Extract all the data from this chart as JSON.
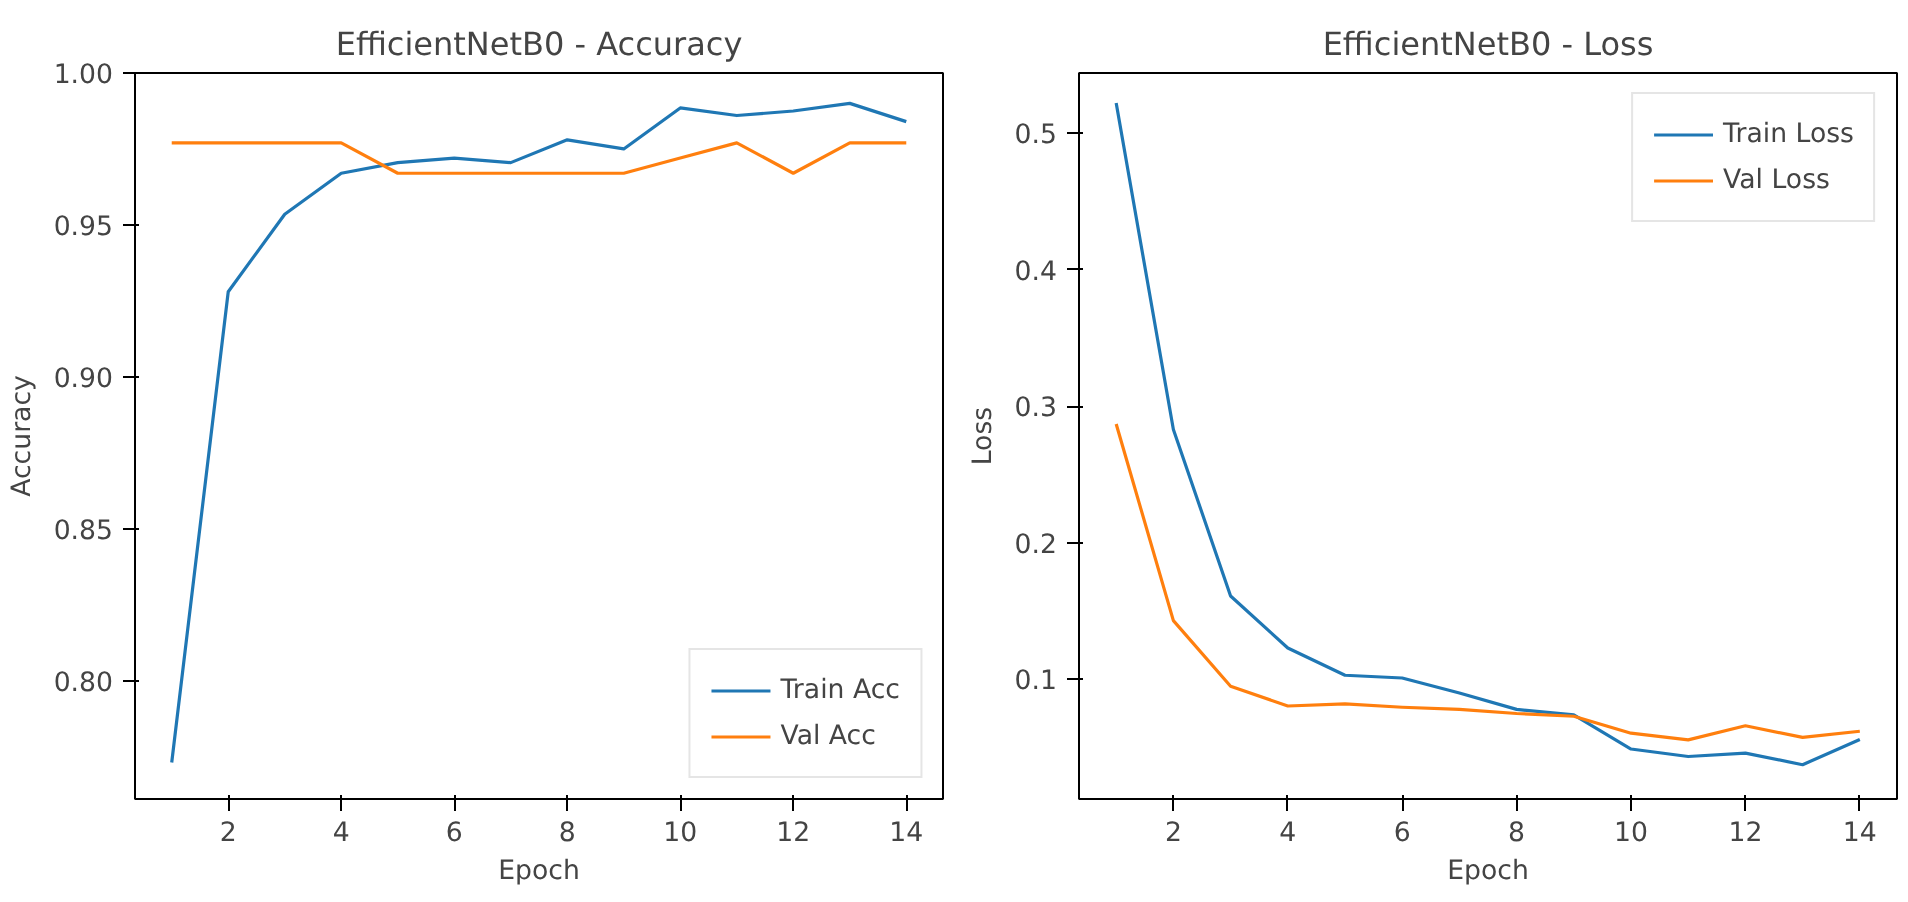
{
  "chart_data": [
    {
      "type": "line",
      "title": "EfficientNetB0 - Accuracy",
      "xlabel": "Epoch",
      "ylabel": "Accuracy",
      "x": [
        1,
        2,
        3,
        4,
        5,
        6,
        7,
        8,
        9,
        10,
        11,
        12,
        13,
        14
      ],
      "xlim": [
        0.35,
        14.65
      ],
      "xticks": [
        2,
        4,
        6,
        8,
        10,
        12,
        14
      ],
      "ylim": [
        0.761,
        1.0
      ],
      "yticks": [
        {
          "value": 0.8,
          "label": "0.80"
        },
        {
          "value": 0.85,
          "label": "0.85"
        },
        {
          "value": 0.9,
          "label": "0.90"
        },
        {
          "value": 0.95,
          "label": "0.95"
        },
        {
          "value": 1.0,
          "label": "1.00"
        }
      ],
      "grid": false,
      "legend": "bottom right",
      "marker": "none",
      "line_style": "solid",
      "series": [
        {
          "name": "Train Acc",
          "color": "#1f77b4",
          "values": [
            0.773,
            0.928,
            0.9535,
            0.967,
            0.9705,
            0.972,
            0.9705,
            0.978,
            0.975,
            0.9885,
            0.986,
            0.9875,
            0.99,
            0.984
          ]
        },
        {
          "name": "Val Acc",
          "color": "#ff7f0e",
          "values": [
            0.977,
            0.977,
            0.977,
            0.977,
            0.967,
            0.967,
            0.967,
            0.967,
            0.967,
            0.972,
            0.977,
            0.967,
            0.977,
            0.977
          ]
        }
      ]
    },
    {
      "type": "line",
      "title": "EfficientNetB0 - Loss",
      "xlabel": "Epoch",
      "ylabel": "Loss",
      "x": [
        1,
        2,
        3,
        4,
        5,
        6,
        7,
        8,
        9,
        10,
        11,
        12,
        13,
        14
      ],
      "xlim": [
        0.35,
        14.65
      ],
      "xticks": [
        2,
        4,
        6,
        8,
        10,
        12,
        14
      ],
      "ylim": [
        0.0124,
        0.544
      ],
      "yticks": [
        0.1,
        0.2,
        0.3,
        0.4,
        0.5
      ],
      "grid": false,
      "legend": "top right",
      "marker": "none",
      "line_style": "solid",
      "series": [
        {
          "name": "Train Loss",
          "color": "#1f77b4",
          "values": [
            0.522,
            0.283,
            0.161,
            0.123,
            0.103,
            0.101,
            0.09,
            0.078,
            0.074,
            0.049,
            0.0435,
            0.046,
            0.0375,
            0.056
          ]
        },
        {
          "name": "Val Loss",
          "color": "#ff7f0e",
          "values": [
            0.287,
            0.143,
            0.095,
            0.0805,
            0.082,
            0.0796,
            0.078,
            0.075,
            0.073,
            0.0606,
            0.0557,
            0.066,
            0.0575,
            0.062
          ]
        }
      ]
    }
  ]
}
